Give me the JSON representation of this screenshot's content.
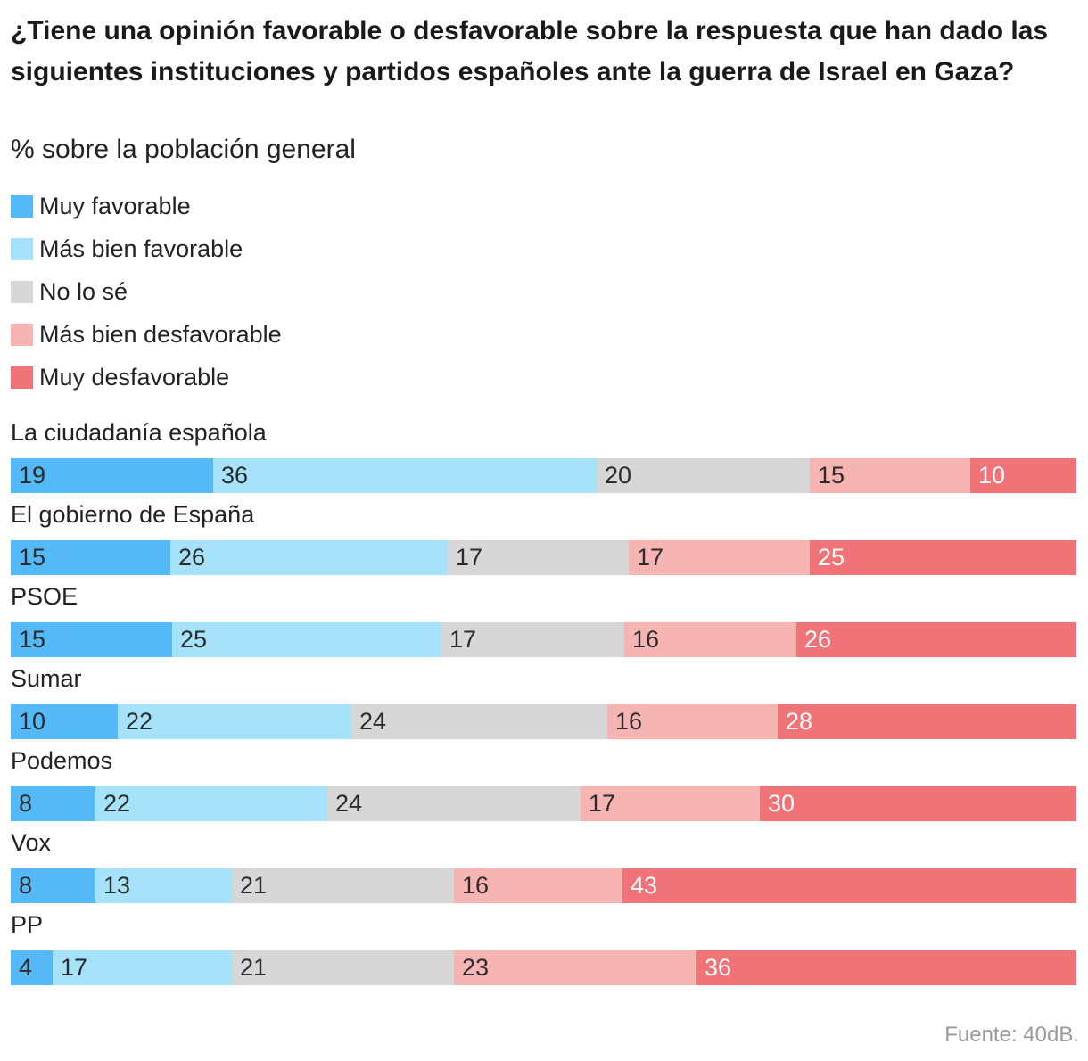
{
  "chart_data": {
    "type": "stacked-bar",
    "orientation": "horizontal",
    "title": "¿Tiene una opinión favorable o desfavorable sobre la respuesta que han dado las siguientes instituciones y partidos españoles ante la guerra de Israel en Gaza?",
    "subtitle": "% sobre la población general",
    "source": "Fuente: 40dB.",
    "legend": [
      {
        "name": "Muy favorable",
        "color": "#55b9f7"
      },
      {
        "name": "Más bien favorable",
        "color": "#a6e3fb"
      },
      {
        "name": "No lo sé",
        "color": "#d7d7d7"
      },
      {
        "name": "Más bien desfavorable",
        "color": "#f6b4b3"
      },
      {
        "name": "Muy desfavorable",
        "color": "#ef7377"
      }
    ],
    "categories": [
      "La ciudadanía española",
      "El gobierno de España",
      "PSOE",
      "Sumar",
      "Podemos",
      "Vox",
      "PP"
    ],
    "series": [
      {
        "name": "Muy favorable",
        "values": [
          19,
          15,
          15,
          10,
          8,
          8,
          4
        ]
      },
      {
        "name": "Más bien favorable",
        "values": [
          36,
          26,
          25,
          22,
          22,
          13,
          17
        ]
      },
      {
        "name": "No lo sé",
        "values": [
          20,
          17,
          17,
          24,
          24,
          21,
          21
        ]
      },
      {
        "name": "Más bien desfavorable",
        "values": [
          15,
          17,
          16,
          16,
          17,
          16,
          23
        ]
      },
      {
        "name": "Muy desfavorable",
        "values": [
          10,
          25,
          26,
          28,
          30,
          43,
          36
        ]
      }
    ]
  }
}
